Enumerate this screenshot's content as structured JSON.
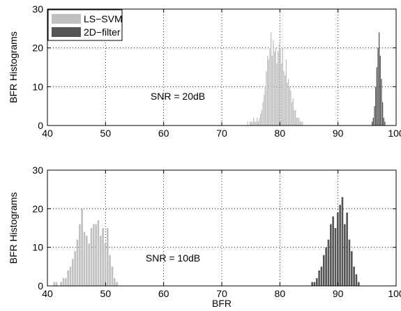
{
  "chart_data": [
    {
      "type": "bar",
      "xlim": [
        40,
        100
      ],
      "ylim": [
        0,
        30
      ],
      "xticks": [
        40,
        50,
        60,
        70,
        80,
        90,
        100
      ],
      "yticks": [
        0,
        10,
        20,
        30
      ],
      "ylabel": "BFR Histograms",
      "xlabel": "",
      "grid": true,
      "annotation": "SNR = 20dB",
      "legend_position": "top-left",
      "legend": [
        "LS−SVM",
        "2D−filter"
      ],
      "bin_width": 0.2,
      "series": [
        {
          "name": "LS−SVM",
          "color": "#c0c0c0",
          "x": [
            74.5,
            74.7,
            74.9,
            75.1,
            75.3,
            75.5,
            75.7,
            75.9,
            76.1,
            76.3,
            76.5,
            76.7,
            76.9,
            77.1,
            77.3,
            77.5,
            77.7,
            77.9,
            78.1,
            78.3,
            78.5,
            78.7,
            78.9,
            79.1,
            79.3,
            79.5,
            79.7,
            79.9,
            80.1,
            80.3,
            80.5,
            80.7,
            80.9,
            81.1,
            81.3,
            81.5,
            81.7,
            81.9,
            82.1,
            82.3,
            82.5,
            82.7,
            82.9,
            83.1,
            83.3,
            83.5,
            83.7,
            83.9
          ],
          "values": [
            1,
            0,
            1,
            1,
            1,
            2,
            1,
            1,
            2,
            1,
            2,
            3,
            4,
            6,
            8,
            10,
            14,
            18,
            17,
            20,
            24,
            18,
            22,
            19,
            20,
            16,
            19,
            21,
            20,
            16,
            20,
            14,
            13,
            17,
            11,
            12,
            10,
            9,
            6,
            7,
            4,
            4,
            2,
            2,
            2,
            1,
            1,
            1
          ]
        },
        {
          "name": "2D−filter",
          "color": "#555555",
          "x": [
            95.9,
            96.1,
            96.3,
            96.5,
            96.7,
            96.9,
            97.1,
            97.3,
            97.5,
            97.7,
            97.9,
            98.1
          ],
          "values": [
            1,
            2,
            5,
            10,
            15,
            20,
            24,
            18,
            12,
            6,
            2,
            1
          ]
        }
      ]
    },
    {
      "type": "bar",
      "xlim": [
        40,
        100
      ],
      "ylim": [
        0,
        30
      ],
      "xticks": [
        40,
        50,
        60,
        70,
        80,
        90,
        100
      ],
      "yticks": [
        0,
        10,
        20,
        30
      ],
      "ylabel": "BFR Histograms",
      "xlabel": "BFR",
      "grid": true,
      "annotation": "SNR = 10dB",
      "bin_width": 0.4,
      "series": [
        {
          "name": "LS−SVM",
          "color": "#c0c0c0",
          "x": [
            41.2,
            41.6,
            42.0,
            42.4,
            42.8,
            43.2,
            43.6,
            44.0,
            44.4,
            44.8,
            45.2,
            45.6,
            46.0,
            46.4,
            46.8,
            47.2,
            47.6,
            48.0,
            48.4,
            48.8,
            49.2,
            49.6,
            50.0,
            50.4,
            50.8,
            51.2,
            51.6,
            52.0
          ],
          "values": [
            1,
            1,
            0,
            1,
            2,
            2,
            4,
            5,
            7,
            9,
            12,
            16,
            20,
            14,
            13,
            11,
            15,
            16,
            16,
            17,
            13,
            15,
            11,
            15,
            8,
            5,
            2,
            1
          ]
        },
        {
          "name": "2D−filter",
          "color": "#555555",
          "x": [
            85.6,
            86.0,
            86.4,
            86.8,
            87.2,
            87.6,
            88.0,
            88.4,
            88.8,
            89.2,
            89.6,
            90.0,
            90.4,
            90.8,
            91.2,
            91.6,
            92.0,
            92.4,
            92.8,
            93.2,
            93.6
          ],
          "values": [
            1,
            1,
            2,
            4,
            5,
            8,
            10,
            12,
            16,
            18,
            15,
            19,
            21,
            23,
            16,
            19,
            12,
            9,
            5,
            3,
            1
          ]
        }
      ]
    }
  ]
}
